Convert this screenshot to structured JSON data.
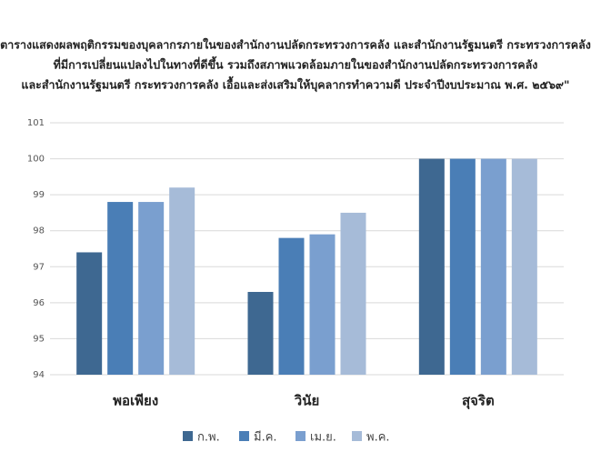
{
  "chart_data": {
    "type": "bar",
    "title": [
      "ตารางแสดงผลพฤติกรรมของบุคลากรภายในของสำนักงานปลัดกระทรวงการคลัง และสำนักงานรัฐมนตรี กระทรวงการคลัง",
      "ที่มีการเปลี่ยนแปลงไปในทางที่ดีขึ้น รวมถึงสภาพแวดล้อมภายในของสำนักงานปลัดกระทรวงการคลัง",
      "และสำนักงานรัฐมนตรี กระทรวงการคลัง เอื้อและส่งเสริมให้บุคลากรทำความดี ประจำปีงบประมาณ พ.ศ. ๒๕๖๙\""
    ],
    "categories": [
      "พอเพียง",
      "วินัย",
      "สุจริต"
    ],
    "series": [
      {
        "name": "ก.พ.",
        "color": "#3e6891",
        "values": [
          97.4,
          96.3,
          100
        ]
      },
      {
        "name": "มี.ค.",
        "color": "#4a7eb6",
        "values": [
          98.8,
          97.8,
          100
        ]
      },
      {
        "name": "เม.ย.",
        "color": "#7a9fcf",
        "values": [
          98.8,
          97.9,
          100
        ]
      },
      {
        "name": "พ.ค.",
        "color": "#a6bbd8",
        "values": [
          99.2,
          98.5,
          100
        ]
      }
    ],
    "ylim": [
      94,
      101
    ],
    "yticks": [
      94,
      95,
      96,
      97,
      98,
      99,
      100,
      101
    ],
    "grid": true,
    "legend": "bottom"
  }
}
